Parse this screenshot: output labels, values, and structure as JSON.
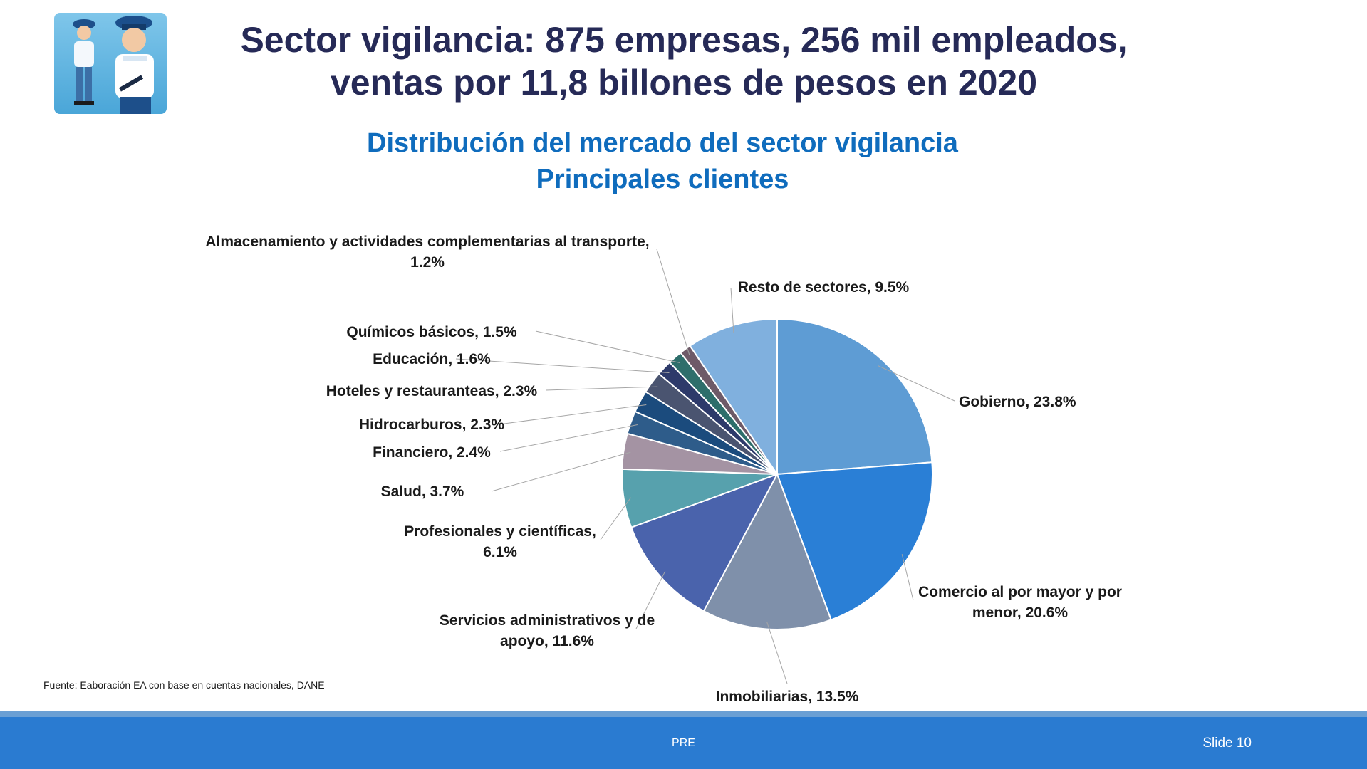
{
  "slide": {
    "title_line1": "Sector vigilancia: 875 empresas, 256 mil empleados,",
    "title_line2": "ventas por 11,8 billones de pesos en 2020",
    "subtitle_line1": "Distribución del mercado del sector vigilancia",
    "subtitle_line2": "Principales clientes",
    "source": "Fuente: Eaboración EA con base en cuentas nacionales, DANE",
    "footer_center": "PRE",
    "footer_right": "Slide 10"
  },
  "chart_data": {
    "type": "pie",
    "title": "",
    "unit": "%",
    "slices": [
      {
        "label": "Gobierno",
        "value": 23.8,
        "display": "Gobierno, 23.8%",
        "color": "#5e9cd4"
      },
      {
        "label": "Comercio al por mayor y por menor",
        "value": 20.6,
        "display_lines": [
          "Comercio al por mayor y por",
          "menor, 20.6%"
        ],
        "color": "#2a7fd6"
      },
      {
        "label": "Inmobiliarias",
        "value": 13.5,
        "display": "Inmobiliarias, 13.5%",
        "color": "#7f90aa"
      },
      {
        "label": "Servicios administrativos y de apoyo",
        "value": 11.6,
        "display_lines": [
          "Servicios administrativos y de",
          "apoyo, 11.6%"
        ],
        "color": "#4a63ac"
      },
      {
        "label": "Profesionales y científicas",
        "value": 6.1,
        "display_lines": [
          "Profesionales y científicas,",
          "6.1%"
        ],
        "color": "#57a1ad"
      },
      {
        "label": "Salud",
        "value": 3.7,
        "display": "Salud, 3.7%",
        "color": "#a493a3"
      },
      {
        "label": "Financiero",
        "value": 2.4,
        "display": "Financiero, 2.4%",
        "color": "#2e5c8a"
      },
      {
        "label": "Hidrocarburos",
        "value": 2.3,
        "display": "Hidrocarburos, 2.3%",
        "color": "#1b4b7d"
      },
      {
        "label": "Hoteles y restauranteas",
        "value": 2.3,
        "display": "Hoteles y restauranteas, 2.3%",
        "color": "#4a5470"
      },
      {
        "label": "Educación",
        "value": 1.6,
        "display": "Educación, 1.6%",
        "color": "#2d3a6a"
      },
      {
        "label": "Químicos básicos",
        "value": 1.5,
        "display": "Químicos básicos, 1.5%",
        "color": "#2e6e6b"
      },
      {
        "label": "Almacenamiento y actividades complementarias al transporte",
        "value": 1.2,
        "display_lines": [
          "Almacenamiento y actividades complementarias al transporte,",
          "1.2%"
        ],
        "color": "#6e5a68"
      },
      {
        "label": "Resto de sectores",
        "value": 9.5,
        "display": "Resto de sectores, 9.5%",
        "color": "#80b0de"
      }
    ]
  }
}
